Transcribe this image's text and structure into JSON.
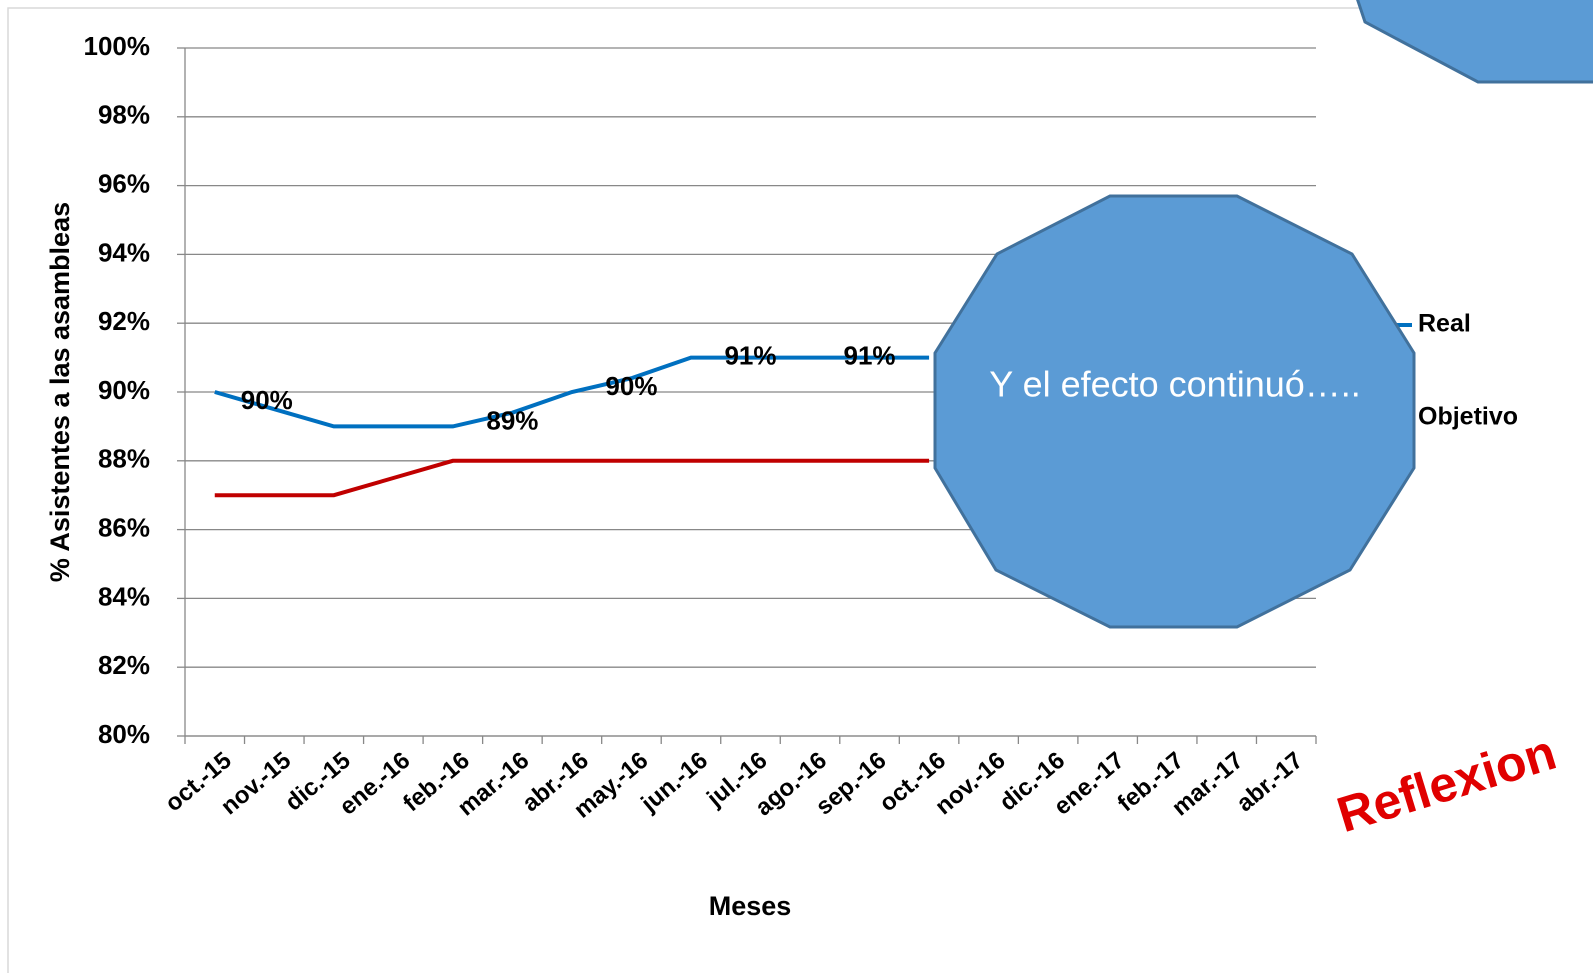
{
  "chart_data": {
    "type": "line",
    "xlabel": "Meses",
    "ylabel": "% Asistentes a las asambleas",
    "categories": [
      "oct.-15",
      "nov.-15",
      "dic.-15",
      "ene.-16",
      "feb.-16",
      "mar.-16",
      "abr.-16",
      "may.-16",
      "jun.-16",
      "jul.-16",
      "ago.-16",
      "sep.-16",
      "oct.-16",
      "nov.-16",
      "dic.-16",
      "ene.-17",
      "feb.-17",
      "mar.-17",
      "abr.-17"
    ],
    "series": [
      {
        "name": "Real",
        "color": "#0070c0",
        "values": [
          90,
          89.5,
          89,
          89,
          89,
          89.4,
          90,
          90.4,
          91,
          91,
          91,
          91,
          91,
          null,
          null,
          null,
          null,
          null,
          null
        ],
        "value_labels": [
          "90%",
          null,
          null,
          null,
          null,
          "89%",
          null,
          "90%",
          null,
          "91%",
          null,
          "91%",
          null,
          null,
          null,
          null,
          null,
          null,
          null
        ]
      },
      {
        "name": "Objetivo",
        "color": "#c00000",
        "values": [
          87,
          87,
          87,
          87.5,
          88,
          88,
          88,
          88,
          88,
          88,
          88,
          88,
          88,
          null,
          null,
          null,
          null,
          null,
          null
        ]
      }
    ],
    "ylim": [
      80,
      100
    ],
    "yticks": [
      {
        "value": 80,
        "label": "80%"
      },
      {
        "value": 82,
        "label": "82%"
      },
      {
        "value": 84,
        "label": "84%"
      },
      {
        "value": 86,
        "label": "86%"
      },
      {
        "value": 88,
        "label": "88%"
      },
      {
        "value": 90,
        "label": "90%"
      },
      {
        "value": 92,
        "label": "92%"
      },
      {
        "value": 94,
        "label": "94%"
      },
      {
        "value": 96,
        "label": "96%"
      },
      {
        "value": 98,
        "label": "98%"
      },
      {
        "value": 100,
        "label": "100%"
      }
    ],
    "grid": true,
    "callout": "Y el efecto continuó…..",
    "annotation": "Reflexion"
  }
}
